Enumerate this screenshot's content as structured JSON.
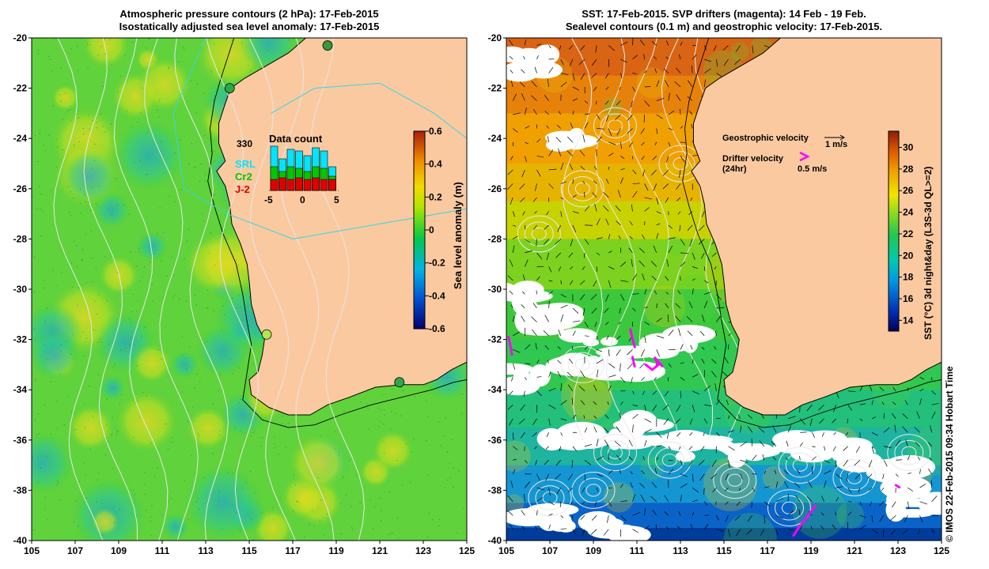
{
  "left_panel": {
    "title_line1": "Atmospheric pressure contours (2 hPa): 17-Feb-2015",
    "title_line2": "Isostatically adjusted sea level anomaly: 17-Feb-2015",
    "colorbar": {
      "label": "Sea level anomaly (m)",
      "ticks": [
        "0.6",
        "0.4",
        "0.2",
        "0",
        "-0.2",
        "-0.4",
        "-0.6"
      ],
      "range": [
        -0.6,
        0.6
      ]
    },
    "inset": {
      "title": "Data count",
      "count": "330",
      "legend": [
        {
          "label": "SRL",
          "color": "#00e5ff"
        },
        {
          "label": "Cr2",
          "color": "#00c800"
        },
        {
          "label": "J-2",
          "color": "#e00000"
        }
      ],
      "x_ticks": [
        "-5",
        "0",
        "5"
      ]
    }
  },
  "right_panel": {
    "title_line1": "SST: 17-Feb-2015. SVP drifters (magenta): 14 Feb - 19 Feb.",
    "title_line2": "Sealevel contours (0.1 m) and geostrophic velocity: 17-Feb-2015.",
    "legend": {
      "geo_label": "Geostrophic velocity",
      "geo_scale": "1 m/s",
      "drifter_label_line1": "Drifter velocity",
      "drifter_label_line2": "(24hr)",
      "drifter_scale": "0.5 m/s"
    },
    "colorbar": {
      "label": "SST (°C) 3d night&day (L3S-3d QL>=2)",
      "ticks": [
        "30",
        "28",
        "26",
        "24",
        "22",
        "20",
        "18",
        "16",
        "14"
      ],
      "range": [
        13,
        31.5
      ]
    }
  },
  "axes": {
    "x_ticks": [
      "105",
      "107",
      "109",
      "111",
      "113",
      "115",
      "117",
      "119",
      "121",
      "123",
      "125"
    ],
    "y_ticks": [
      "-20",
      "-22",
      "-24",
      "-26",
      "-28",
      "-30",
      "-32",
      "-34",
      "-36",
      "-38",
      "-40"
    ],
    "lon_range": [
      105,
      125
    ],
    "lat_range": [
      -40,
      -20
    ]
  },
  "credit": "© IMOS 22-Feb-2015 09:34 Hobart Time",
  "colors": {
    "land": "#fbc9a0",
    "ocean_green": "#33d633",
    "coast": "#000000",
    "contour": "#e8e8e8",
    "drifter": "#ff00ff",
    "cyan_contour": "#33d6e6"
  }
}
